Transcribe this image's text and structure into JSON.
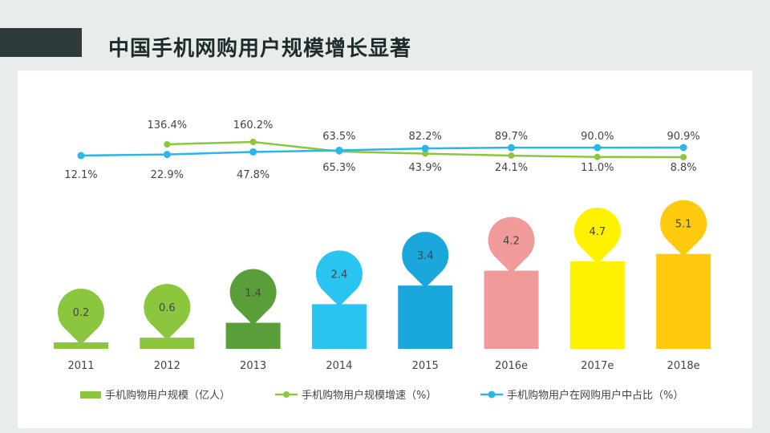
{
  "title": "中国手机网购用户规模增长显著",
  "colors": {
    "title_bar": "#2f3a3a",
    "growth_line": "#8cc63f",
    "share_line": "#29b6e8"
  },
  "chart_data": {
    "type": "bar+line",
    "categories": [
      "2011",
      "2012",
      "2013",
      "2014",
      "2015",
      "2016e",
      "2017e",
      "2018e"
    ],
    "series": [
      {
        "name": "手机购物用户规模（亿人）",
        "kind": "bar",
        "values": [
          0.2,
          0.6,
          1.4,
          2.4,
          3.4,
          4.2,
          4.7,
          5.1
        ],
        "colors": [
          "#8cc63f",
          "#8cc63f",
          "#5a9e3a",
          "#29c4f0",
          "#1aa8dc",
          "#f19a9a",
          "#fff200",
          "#ffc90e"
        ]
      },
      {
        "name": "手机购物用户规模增速（%）",
        "kind": "line",
        "color": "#8cc63f",
        "values": [
          null,
          136.4,
          160.2,
          65.3,
          43.9,
          24.1,
          11.0,
          8.8
        ],
        "labels": [
          "",
          "136.4%",
          "160.2%",
          "65.3%",
          "43.9%",
          "24.1%",
          "11.0%",
          "8.8%"
        ]
      },
      {
        "name": "手机购物用户在网购用户中占比（%）",
        "kind": "line",
        "color": "#29b6e8",
        "values": [
          12.1,
          22.9,
          47.8,
          63.5,
          82.2,
          89.7,
          90.0,
          90.9
        ],
        "labels": [
          "12.1%",
          "22.9%",
          "47.8%",
          "63.5%",
          "82.2%",
          "89.7%",
          "90.0%",
          "90.9%"
        ]
      }
    ],
    "legend_position": "bottom"
  }
}
